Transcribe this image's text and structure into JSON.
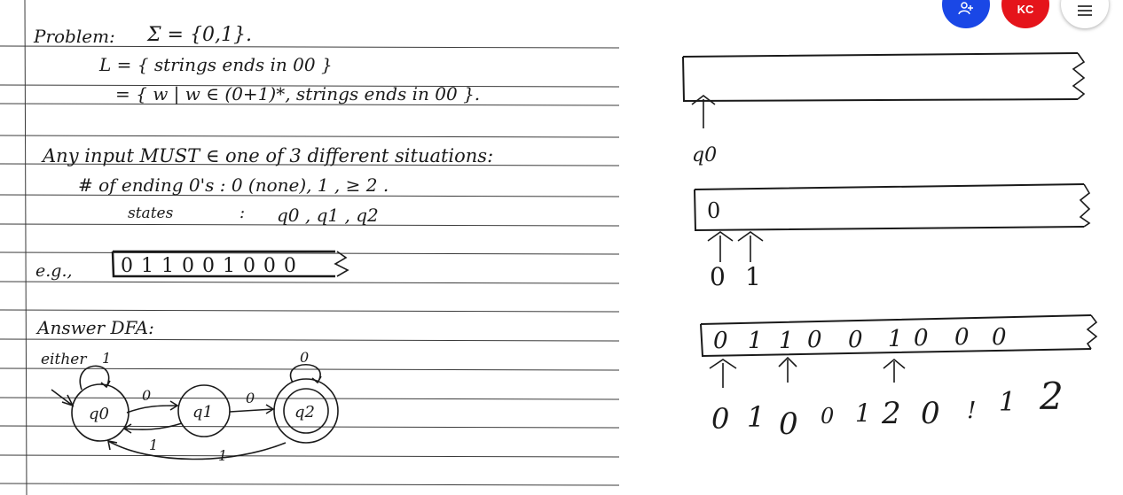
{
  "toolbar": {
    "add_person_icon": "add-person-icon",
    "user_initials": "KC",
    "menu_icon": "hamburger-menu-icon",
    "colors": {
      "add": "#1a47e6",
      "user": "#e5141b",
      "menu": "#ffffff"
    }
  },
  "notes": {
    "problem": "Problem:",
    "sigma": "Σ = {0,1}.",
    "lang1": "L = { strings ends in 00 }",
    "lang2": "= { w | w ∈ (0+1)*, strings ends in 00 }.",
    "any_input": "Any input MUST ∈ one of 3 different situations:",
    "ending": "# of ending 0's :  0 (none),  1 ,  ≥ 2 .",
    "states_label": "states",
    "states_colon": ":",
    "states_values": "q0   ,  q1 ,  q2",
    "eg": "e.g.,",
    "tape_example": "0 1 1 0 0 1 0 0 0",
    "answer": "Answer DFA:",
    "either": "either"
  },
  "dfa": {
    "states": [
      "q0",
      "q1",
      "q2"
    ],
    "transitions": {
      "q0_self": "1",
      "q0_q1": "0",
      "q1_q0": "1",
      "q1_q2": "0",
      "q2_self": "0",
      "q2_q0": "1"
    }
  },
  "tapes": {
    "tape1": {
      "label": "q0"
    },
    "tape2": {
      "cell": "0",
      "labels": [
        "0",
        "1"
      ]
    },
    "tape3": {
      "cells": [
        "0",
        "1",
        "1",
        "0",
        "0",
        "1",
        "0",
        "0",
        "0"
      ],
      "labels": [
        "0",
        "1",
        "0",
        "0",
        "1",
        "2",
        "0",
        "!",
        "1",
        "2"
      ]
    }
  }
}
